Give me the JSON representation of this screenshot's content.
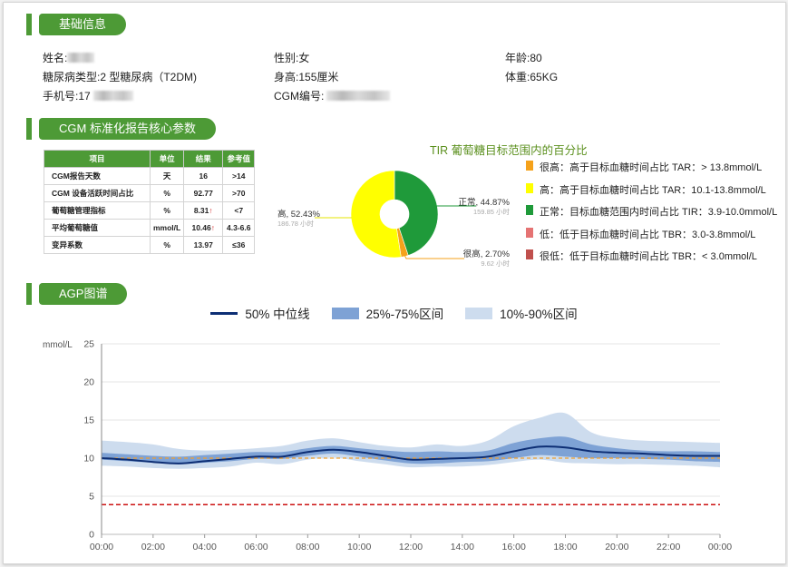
{
  "sections": {
    "basic": "基础信息",
    "core": "CGM 标准化报告核心参数",
    "agp": "AGP图谱"
  },
  "patient": {
    "name_label": "姓名:",
    "gender_label": "性别:",
    "gender": "女",
    "age_label": "年龄:",
    "age": "80",
    "diabetes_label": "糖尿病类型:",
    "diabetes": "2 型糖尿病（T2DM)",
    "height_label": "身高:",
    "height": "155厘米",
    "weight_label": "体重:",
    "weight": "65KG",
    "phone_label": "手机号:",
    "phone_prefix": "17",
    "cgm_label": "CGM编号:"
  },
  "core_table": {
    "headers": [
      "项目",
      "单位",
      "结果",
      "参考值"
    ],
    "rows": [
      {
        "item": "CGM报告天数",
        "unit": "天",
        "result": "16",
        "arrow": "",
        "ref": ">14"
      },
      {
        "item": "CGM 设备活跃时间占比",
        "unit": "%",
        "result": "92.77",
        "arrow": "",
        "ref": ">70"
      },
      {
        "item": "葡萄糖管理指标",
        "unit": "%",
        "result": "8.31",
        "arrow": "↑",
        "ref": "<7"
      },
      {
        "item": "平均葡萄糖值",
        "unit": "mmol/L",
        "result": "10.46",
        "arrow": "↑",
        "ref": "4.3-6.6"
      },
      {
        "item": "变异系数",
        "unit": "%",
        "result": "13.97",
        "arrow": "",
        "ref": "≤36"
      }
    ]
  },
  "tir": {
    "title": "TIR 葡萄糖目标范围内的百分比",
    "legend": [
      {
        "label": "很高：高于目标血糖时间占比 TAR：> 13.8mmol/L",
        "color": "#f5a21b"
      },
      {
        "label": "高：高于目标血糖时间占比 TAR：10.1-13.8mmol/L",
        "color": "#ffff00"
      },
      {
        "label": "正常：目标血糖范围内时间占比 TIR：3.9-10.0mmol/L",
        "color": "#1f9a3a"
      },
      {
        "label": "低：低于目标血糖时间占比 TBR：3.0-3.8mmol/L",
        "color": "#e57373"
      },
      {
        "label": "很低：低于目标血糖时间占比 TBR：< 3.0mmol/L",
        "color": "#c0504d"
      }
    ],
    "labels": {
      "high": "高, 52.43%",
      "high_hours": "186.78 小时",
      "normal": "正常, 44.87%",
      "normal_hours": "159.85 小时",
      "very_high": "很高, 2.70%",
      "very_high_hours": "9.62 小时"
    }
  },
  "chart_data": [
    {
      "type": "pie",
      "title": "TIR 葡萄糖目标范围内的百分比",
      "donut": true,
      "slices": [
        {
          "label": "正常",
          "value": 44.87,
          "hours": 159.85,
          "color": "#1f9a3a"
        },
        {
          "label": "很高",
          "value": 2.7,
          "hours": 9.62,
          "color": "#f5a21b"
        },
        {
          "label": "高",
          "value": 52.43,
          "hours": 186.78,
          "color": "#ffff00"
        }
      ]
    },
    {
      "type": "area",
      "title": "",
      "ylabel": "mmol/L",
      "ylim": [
        0,
        25
      ],
      "yticks": [
        0,
        5,
        10,
        15,
        20,
        25
      ],
      "xticks": [
        "00:00",
        "02:00",
        "04:00",
        "06:00",
        "08:00",
        "10:00",
        "12:00",
        "14:00",
        "16:00",
        "18:00",
        "20:00",
        "22:00",
        "00:00"
      ],
      "x_hours": [
        0,
        1,
        2,
        3,
        4,
        5,
        6,
        7,
        8,
        9,
        10,
        11,
        12,
        13,
        14,
        15,
        16,
        17,
        18,
        19,
        20,
        21,
        22,
        23,
        24
      ],
      "legend": [
        "50% 中位线",
        "25%-75%区间",
        "10%-90%区间"
      ],
      "series": [
        {
          "name": "10%-90%区间",
          "color": "#cddcee",
          "low": [
            9.0,
            8.9,
            8.7,
            8.6,
            8.7,
            8.9,
            9.4,
            9.2,
            9.8,
            10.1,
            9.6,
            9.2,
            8.8,
            8.9,
            8.9,
            9.1,
            9.5,
            9.8,
            9.4,
            9.3,
            9.2,
            9.2,
            9.1,
            9.0,
            8.8
          ],
          "high": [
            12.3,
            12.1,
            11.8,
            11.2,
            11.0,
            11.1,
            11.3,
            11.6,
            12.3,
            12.6,
            12.1,
            11.6,
            11.4,
            11.8,
            11.6,
            12.3,
            14.2,
            15.3,
            15.9,
            13.4,
            12.6,
            12.3,
            12.2,
            12.1,
            12.0
          ]
        },
        {
          "name": "25%-75%区间",
          "color": "#7ea2d5",
          "low": [
            9.8,
            9.6,
            9.4,
            9.2,
            9.4,
            9.6,
            9.9,
            9.9,
            10.3,
            10.6,
            10.2,
            9.7,
            9.3,
            9.3,
            9.5,
            9.6,
            10.0,
            10.4,
            10.2,
            10.0,
            10.0,
            9.9,
            9.8,
            9.6,
            9.5
          ],
          "high": [
            10.7,
            10.5,
            10.3,
            10.2,
            10.4,
            10.6,
            10.8,
            10.8,
            11.3,
            11.6,
            11.3,
            11.0,
            10.8,
            10.9,
            10.8,
            11.0,
            12.0,
            12.6,
            12.8,
            11.8,
            11.3,
            11.0,
            10.9,
            10.9,
            10.8
          ]
        },
        {
          "name": "50% 中位线",
          "color": "#0d2e74",
          "values": [
            10.0,
            9.8,
            9.5,
            9.3,
            9.6,
            9.9,
            10.2,
            10.2,
            10.8,
            11.1,
            10.8,
            10.3,
            9.8,
            9.9,
            10.0,
            10.2,
            10.9,
            11.5,
            11.4,
            10.9,
            10.7,
            10.6,
            10.4,
            10.3,
            10.3
          ]
        }
      ],
      "reference_lines": [
        {
          "value": 10.0,
          "color": "#f0a030",
          "style": "dashed"
        },
        {
          "value": 3.9,
          "color": "#cc1111",
          "style": "dashed"
        }
      ]
    }
  ]
}
